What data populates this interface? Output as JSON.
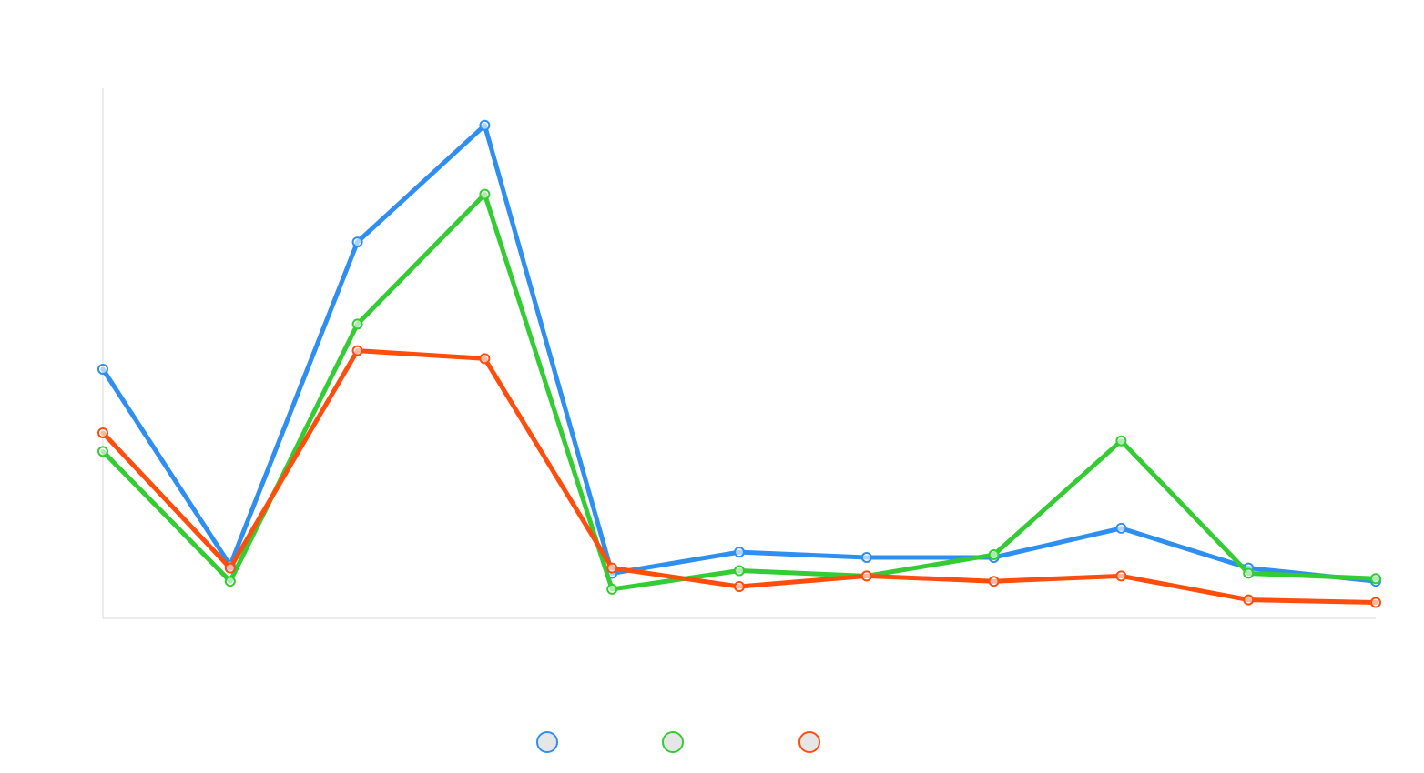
{
  "chart_data": {
    "type": "line",
    "title": "",
    "xlabel": "",
    "ylabel": "",
    "x": [
      0,
      1,
      2,
      3,
      4,
      5,
      6,
      7,
      8,
      9,
      10
    ],
    "ylim": [
      0,
      100
    ],
    "grid": false,
    "legend": "bottom-center",
    "series": [
      {
        "color": "#2f8ff0",
        "values": [
          47,
          10,
          71,
          93,
          8.5,
          12.5,
          11.5,
          11.5,
          17,
          9.5,
          7
        ]
      },
      {
        "color": "#33cc33",
        "values": [
          31.5,
          7,
          55.5,
          80,
          5.5,
          9,
          8,
          12,
          33.5,
          8.5,
          7.5
        ]
      },
      {
        "color": "#ff4d0d",
        "values": [
          35,
          9.5,
          50.5,
          49,
          9.5,
          6,
          8,
          7,
          8,
          3.5,
          3
        ]
      }
    ]
  }
}
